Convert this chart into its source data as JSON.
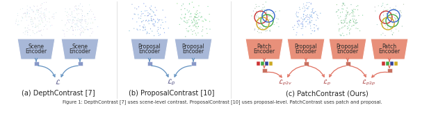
{
  "bg_color": "#ffffff",
  "box_blue": "#a8b8d8",
  "box_red": "#e8907a",
  "arrow_blue": "#6090c0",
  "arrow_red": "#e07060",
  "section_a_label": "(a) DepthContrast [7]",
  "section_b_label": "(b) ProposalContrast [10]",
  "section_c_label": "(c) PatchContrast (Ours)",
  "caption_text": "Figure 1: DepthContrast [7] uses scene-level contrast. ProposalContrast [10] uses proposal-level. PatchContrast uses patch and proposal.",
  "small_rect_blue": "#8898c8",
  "small_rect_red": "#c87060",
  "patch_colors": [
    "#cc3333",
    "#44aa44",
    "#334499",
    "#ccaa22"
  ]
}
